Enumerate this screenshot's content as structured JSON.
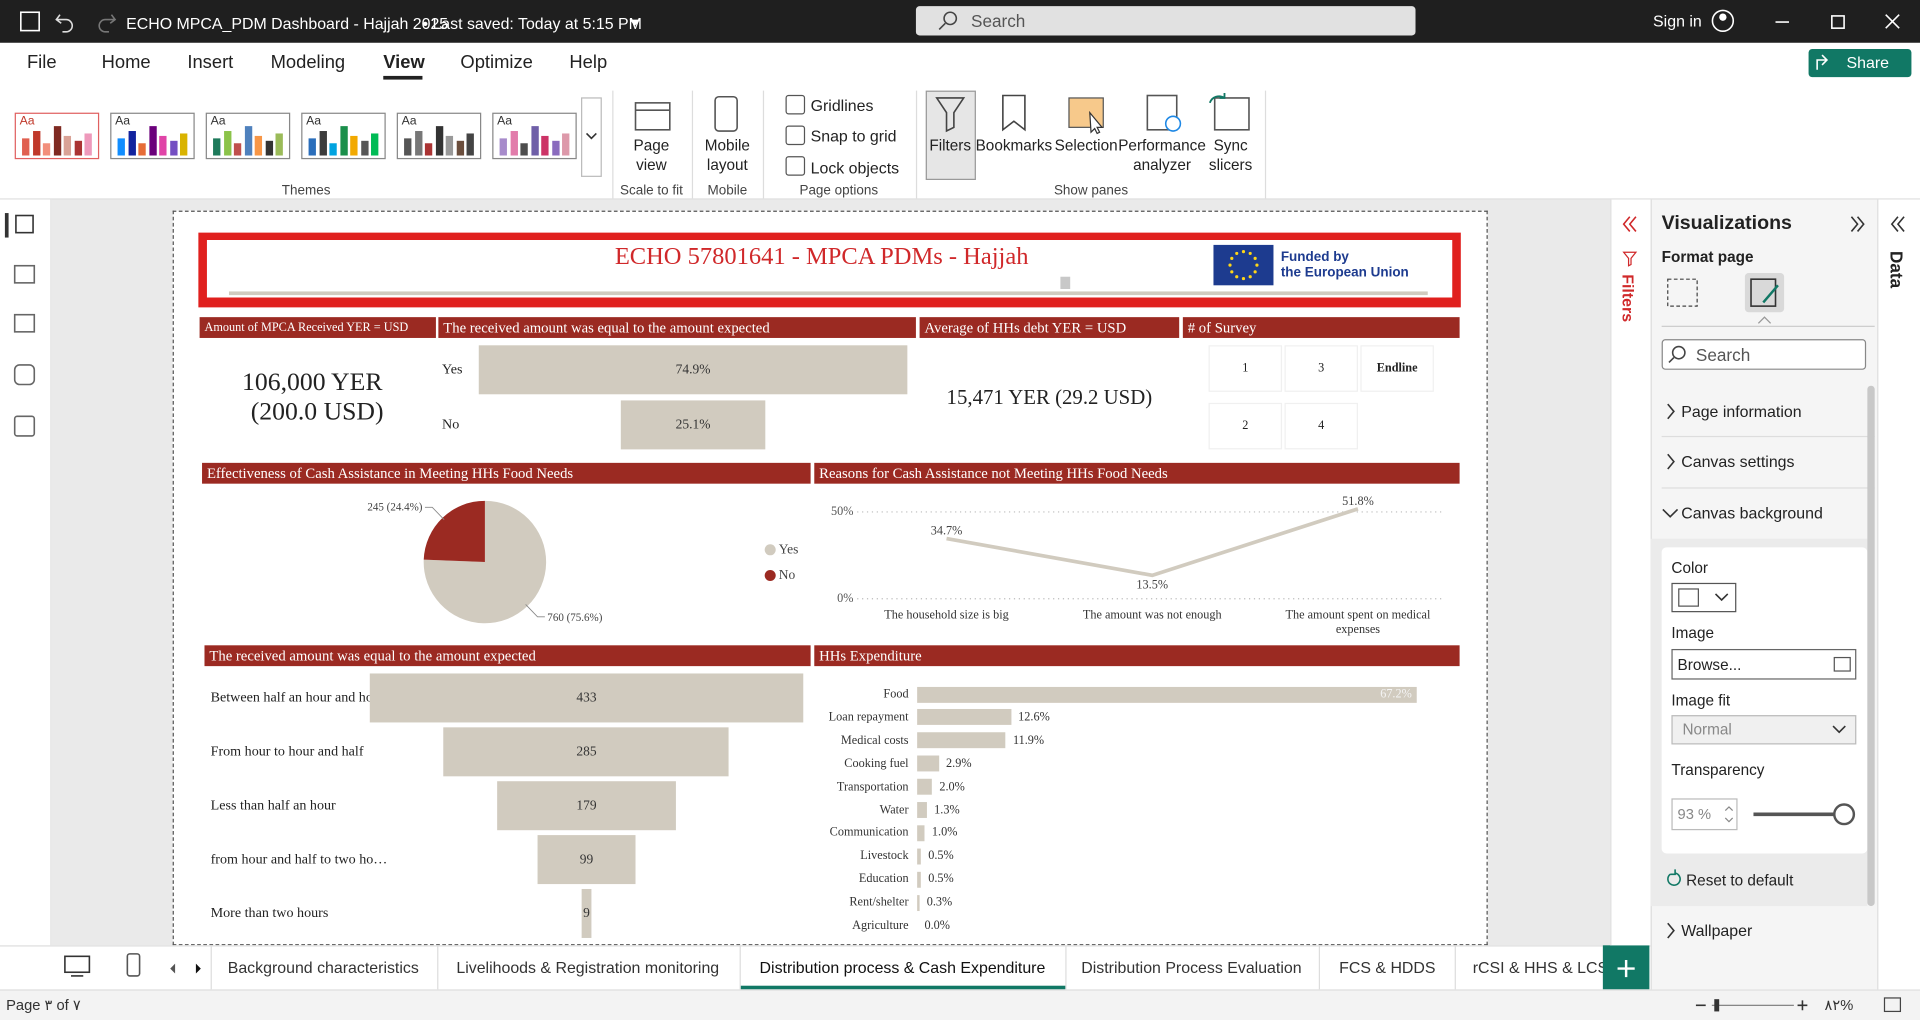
{
  "app": {
    "title": "ECHO MPCA_PDM Dashboard - Hajjah 2025",
    "saved": "• Last saved: Today at 5:15 PM",
    "search": "Search",
    "sign_in": "Sign in"
  },
  "menu": [
    "File",
    "Home",
    "Insert",
    "Modeling",
    "View",
    "Optimize",
    "Help"
  ],
  "share": "Share",
  "ribbon": {
    "theme_samples": [
      "Aa",
      "Aa",
      "Aa",
      "Aa",
      "Aa",
      "Aa"
    ],
    "themes": "Themes",
    "page_view": "Page view",
    "scale_to_fit": "Scale to fit",
    "mobile_layout": "Mobile layout",
    "mobile": "Mobile",
    "page_options": [
      "Gridlines",
      "Snap to grid",
      "Lock objects"
    ],
    "page_options_label": "Page options",
    "panes": [
      "Filters",
      "Bookmarks",
      "Selection",
      "Performance analyzer",
      "Sync slicers"
    ],
    "show_panes": "Show panes"
  },
  "report": {
    "title": "ECHO 57801641 - MPCA PDMs - Hajjah",
    "funder": [
      "Funded by",
      "the European Union"
    ],
    "amount_card": {
      "title": "Amount of MPCA Received YER = USD",
      "lines": [
        "106,000 YER",
        "(200.0 USD)"
      ]
    },
    "debt_card": {
      "title": "Average of HHs debt YER = USD",
      "value": "15,471 YER  (29.2 USD)"
    },
    "survey": {
      "title": "# of Survey",
      "items": [
        "1",
        "3",
        "Endline",
        "2",
        "4"
      ]
    }
  },
  "chart_data": [
    {
      "type": "funnel",
      "title": "The received amount was equal to the amount expected",
      "categories": [
        "Yes",
        "No"
      ],
      "values": [
        74.9,
        25.1
      ],
      "value_labels": [
        "74.9%",
        "25.1%"
      ],
      "color": "#d1cbbf"
    },
    {
      "type": "pie",
      "title": "Effectiveness of Cash Assistance in Meeting HHs Food Needs",
      "categories": [
        "Yes",
        "No"
      ],
      "values": [
        760,
        245
      ],
      "value_labels": [
        "760 (75.6%)",
        "245 (24.4%)"
      ],
      "colors": [
        "#d1cbbf",
        "#9b2a22"
      ],
      "legend": "right"
    },
    {
      "type": "line",
      "title": "Reasons for Cash Assistance not Meeting HHs Food Needs",
      "categories": [
        "The household size is big",
        "The amount was not enough",
        "The amount spent on medical expenses"
      ],
      "values": [
        34.7,
        13.5,
        51.8
      ],
      "value_labels": [
        "34.7%",
        "13.5%",
        "51.8%"
      ],
      "color": "#d1cbbf",
      "ylim": [
        0,
        55
      ],
      "yticks": [
        {
          "value": 0,
          "label": "0%"
        },
        {
          "value": 50,
          "label": "50%"
        }
      ],
      "grid": true
    },
    {
      "type": "funnel",
      "title": "The received amount was equal to the amount expected",
      "categories": [
        "Between half an hour and ho…",
        "From hour to hour and half",
        "Less than half an hour",
        "from hour and half to two ho…",
        "More than two hours"
      ],
      "values": [
        433,
        285,
        179,
        99,
        9
      ],
      "color": "#d1cbbf"
    },
    {
      "type": "hbar",
      "title": "HHs Expenditure",
      "categories": [
        "Food",
        "Loan repayment",
        "Medical costs",
        "Cooking fuel",
        "Transportation",
        "Water",
        "Communication",
        "Livestock",
        "Education",
        "Rent/shelter",
        "Agriculture"
      ],
      "values": [
        67.2,
        12.6,
        11.9,
        2.9,
        2.0,
        1.3,
        1.0,
        0.5,
        0.5,
        0.3,
        0.0
      ],
      "value_labels": [
        "67.2%",
        "12.6%",
        "11.9%",
        "2.9%",
        "2.0%",
        "1.3%",
        "1.0%",
        "0.5%",
        "0.5%",
        "0.3%",
        "0.0%"
      ],
      "color": "#d1cbbf"
    }
  ],
  "pages": [
    "Background characteristics",
    "Livelihoods & Registration monitoring",
    "Distribution process & Cash Expenditure",
    "Distribution Process Evaluation",
    "FCS & HDDS",
    "rCSI & HHS & LCS"
  ],
  "status": {
    "page": "Page ٣ of ٧",
    "zoom": "٨٢%"
  },
  "filters_pane": "Filters",
  "visualizations": {
    "title": "Visualizations",
    "format_page": "Format page",
    "search": "Search",
    "sections": [
      "Page information",
      "Canvas settings",
      "Canvas background"
    ],
    "color": "Color",
    "image": "Image",
    "browse": "Browse...",
    "image_fit": "Image fit",
    "fit_value": "Normal",
    "transparency": "Transparency",
    "transparency_value": "93 %",
    "reset": "Reset to default",
    "wallpaper": "Wallpaper"
  },
  "data_pane": "Data"
}
